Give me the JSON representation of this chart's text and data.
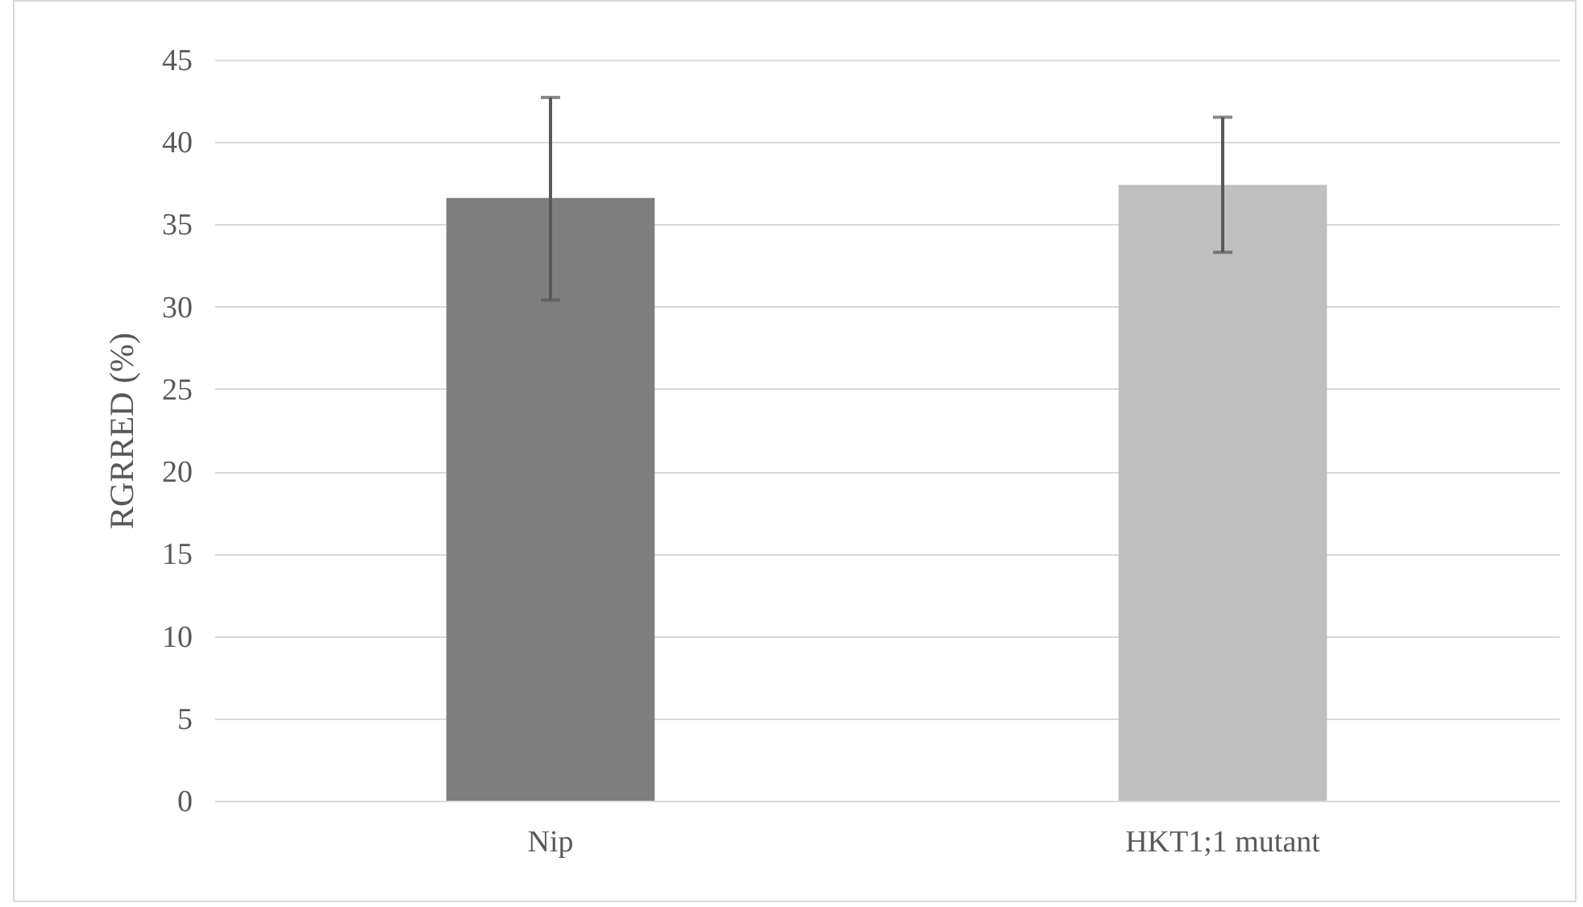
{
  "chart_data": {
    "type": "bar",
    "ylabel": "RGRRED (%)",
    "categories": [
      "Nip",
      "HKT1;1 mutant"
    ],
    "values": [
      36.6,
      37.4
    ],
    "colors": [
      "#7f7f7f",
      "#bfbfbf"
    ],
    "errors": [
      [
        30.4,
        42.7
      ],
      [
        33.3,
        41.5
      ]
    ],
    "ylim": [
      0,
      45
    ],
    "yticks": [
      0,
      5,
      10,
      15,
      20,
      25,
      30,
      35,
      40,
      45
    ],
    "grid": "y"
  }
}
